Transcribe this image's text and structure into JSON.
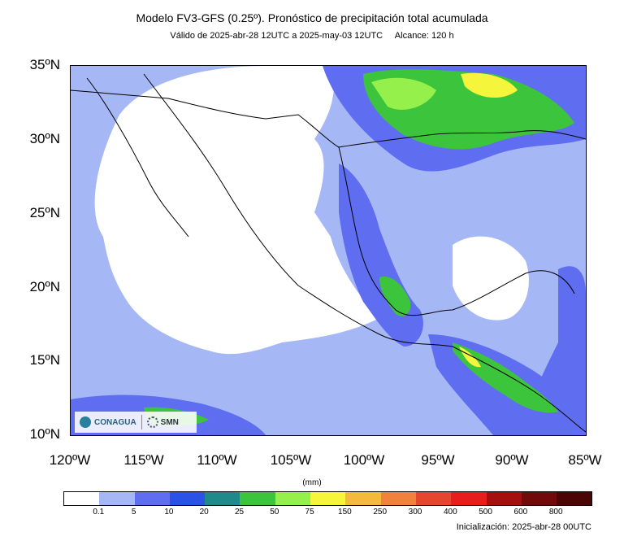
{
  "header": {
    "title": "Modelo FV3-GFS (0.25º). Pronóstico de precipitación total acumulada",
    "subtitle": "Válido de 2025-abr-28 12UTC a 2025-may-03 12UTC     Alcance: 120 h"
  },
  "map": {
    "lat_labels": [
      "35ºN",
      "30ºN",
      "25ºN",
      "20ºN",
      "15ºN",
      "10ºN"
    ],
    "lon_labels": [
      "120ºW",
      "115ºW",
      "110ºW",
      "105ºW",
      "100ºW",
      "95ºW",
      "90ºW",
      "85ºW"
    ],
    "extent": {
      "lon_min": -120,
      "lon_max": -85,
      "lat_min": 10,
      "lat_max": 35
    }
  },
  "logos": {
    "left": "CONAGUA",
    "right": "SMN"
  },
  "legend": {
    "units": "(mm)",
    "colors": [
      "#ffffff",
      "#a6b7f6",
      "#5f6ef0",
      "#2b52e6",
      "#1e8a8a",
      "#3cc43c",
      "#96f04b",
      "#f5f53c",
      "#f5b93c",
      "#f0823c",
      "#e6462d",
      "#e61e1e",
      "#a50f0f",
      "#730a0a",
      "#4b0505"
    ],
    "labels": [
      "0.1",
      "5",
      "10",
      "20",
      "25",
      "50",
      "75",
      "150",
      "250",
      "300",
      "400",
      "500",
      "600",
      "800"
    ]
  },
  "footer": {
    "init": "Inicialización: 2025-abr-28 00UTC"
  }
}
